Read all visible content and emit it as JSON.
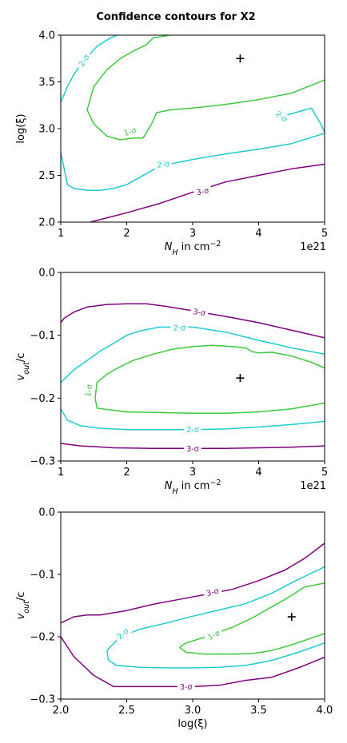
{
  "figure_title": "Confidence contours for X2",
  "colors": {
    "one_sigma": "#3ec93e",
    "two_sigma": "#1ecbd0",
    "three_sigma": "#800080"
  },
  "chart_data": [
    {
      "type": "line",
      "xlabel": "$N_H$ in cm$^{-2}$",
      "ylabel": "log(ξ)",
      "x_offset_label": "1e21",
      "xlim": [
        1,
        5
      ],
      "ylim": [
        2.0,
        4.0
      ],
      "x_ticks": [
        "1",
        "2",
        "3",
        "4",
        "5"
      ],
      "y_ticks": [
        "2.0",
        "2.5",
        "3.0",
        "3.5",
        "4.0"
      ],
      "x_tick_values": [
        1,
        2,
        3,
        4,
        5
      ],
      "y_tick_values": [
        2.0,
        2.5,
        3.0,
        3.5,
        4.0
      ],
      "best_fit": [
        3.72,
        3.75
      ],
      "series": [
        {
          "name": "3-σ",
          "level": "three_sigma",
          "x": [
            1.45,
            2.0,
            2.5,
            3.0,
            3.5,
            4.0,
            4.5,
            5.0
          ],
          "y": [
            2.0,
            2.1,
            2.2,
            2.32,
            2.43,
            2.5,
            2.57,
            2.62
          ]
        },
        {
          "name": "2-σ",
          "level": "two_sigma",
          "x": [
            1.0,
            1.1,
            1.2,
            1.4,
            1.6,
            1.8,
            2.0,
            2.5,
            3.0,
            3.5,
            4.0,
            4.5,
            5.0
          ],
          "y": [
            2.75,
            2.4,
            2.36,
            2.34,
            2.34,
            2.36,
            2.4,
            2.6,
            2.67,
            2.73,
            2.78,
            2.84,
            2.95
          ]
        },
        {
          "name": "2-σ",
          "level": "two_sigma",
          "x": [
            1.0,
            1.1,
            1.2,
            1.35,
            1.55,
            1.75,
            1.85
          ],
          "y": [
            3.28,
            3.45,
            3.58,
            3.73,
            3.88,
            3.97,
            4.0
          ]
        },
        {
          "name": "2-σ",
          "level": "two_sigma",
          "x": [
            4.3,
            4.55,
            4.8,
            4.95,
            5.0
          ],
          "y": [
            3.12,
            3.17,
            3.22,
            3.04,
            2.96
          ]
        },
        {
          "name": "1-σ",
          "level": "one_sigma",
          "x": [
            2.25,
            2.1,
            1.9,
            1.7,
            1.5,
            1.4,
            1.5,
            1.7,
            1.9,
            2.1,
            2.3,
            2.4,
            2.65
          ],
          "y": [
            2.9,
            2.9,
            2.88,
            2.92,
            3.05,
            3.2,
            3.45,
            3.63,
            3.75,
            3.83,
            3.9,
            3.97,
            4.0
          ]
        },
        {
          "name": "1-σ",
          "level": "one_sigma",
          "x": [
            2.25,
            2.4,
            2.45,
            2.65,
            3.0,
            3.5,
            4.0,
            4.5,
            5.0
          ],
          "y": [
            2.9,
            3.08,
            3.17,
            3.2,
            3.22,
            3.26,
            3.31,
            3.38,
            3.52
          ]
        }
      ],
      "contour_labels": [
        {
          "text": "2-σ",
          "level": "two_sigma",
          "x": 1.35,
          "y": 3.73,
          "angle": -58
        },
        {
          "text": "2-σ",
          "level": "two_sigma",
          "x": 4.35,
          "y": 3.13,
          "angle": 40
        },
        {
          "text": "2-σ",
          "level": "two_sigma",
          "x": 2.55,
          "y": 2.62,
          "angle": -8
        },
        {
          "text": "1-σ",
          "level": "one_sigma",
          "x": 2.05,
          "y": 2.97,
          "angle": -18
        },
        {
          "text": "3-σ",
          "level": "three_sigma",
          "x": 3.15,
          "y": 2.33,
          "angle": -10
        }
      ]
    },
    {
      "type": "line",
      "xlabel": "$N_H$ in cm$^{-2}$",
      "ylabel": "v_out/c",
      "x_offset_label": "1e21",
      "xlim": [
        1,
        5
      ],
      "ylim": [
        -0.3,
        0.0
      ],
      "x_ticks": [
        "1",
        "2",
        "3",
        "4",
        "5"
      ],
      "y_ticks": [
        "−0.3",
        "−0.2",
        "−0.1",
        "0.0"
      ],
      "x_tick_values": [
        1,
        2,
        3,
        4,
        5
      ],
      "y_tick_values": [
        -0.3,
        -0.2,
        -0.1,
        0.0
      ],
      "best_fit": [
        3.72,
        -0.168
      ],
      "series": [
        {
          "name": "3-σ",
          "level": "three_sigma",
          "x": [
            5.0,
            4.5,
            4.0,
            3.5,
            3.0,
            2.6,
            2.3,
            2.0,
            1.7,
            1.4,
            1.2,
            1.05,
            1.0
          ],
          "y": [
            -0.104,
            -0.092,
            -0.08,
            -0.07,
            -0.061,
            -0.054,
            -0.05,
            -0.05,
            -0.051,
            -0.055,
            -0.063,
            -0.073,
            -0.08
          ]
        },
        {
          "name": "3-σ",
          "level": "three_sigma",
          "x": [
            1.0,
            1.3,
            1.8,
            2.4,
            3.0,
            3.5,
            4.0,
            4.5,
            5.0
          ],
          "y": [
            -0.272,
            -0.276,
            -0.279,
            -0.28,
            -0.28,
            -0.28,
            -0.279,
            -0.278,
            -0.276
          ]
        },
        {
          "name": "2-σ",
          "level": "two_sigma",
          "x": [
            5.0,
            4.5,
            4.0,
            3.5,
            3.0,
            2.5,
            2.2,
            2.0,
            1.8,
            1.6,
            1.4,
            1.2,
            1.0
          ],
          "y": [
            -0.13,
            -0.12,
            -0.108,
            -0.095,
            -0.087,
            -0.087,
            -0.093,
            -0.1,
            -0.113,
            -0.125,
            -0.14,
            -0.155,
            -0.175
          ]
        },
        {
          "name": "2-σ",
          "level": "two_sigma",
          "x": [
            1.0,
            1.1,
            1.3,
            1.6,
            2.0,
            2.5,
            3.0,
            3.5,
            4.0,
            4.5,
            5.0
          ],
          "y": [
            -0.217,
            -0.235,
            -0.244,
            -0.248,
            -0.25,
            -0.25,
            -0.25,
            -0.249,
            -0.246,
            -0.242,
            -0.237
          ]
        },
        {
          "name": "1-σ",
          "level": "one_sigma",
          "x": [
            1.52,
            1.55,
            1.7,
            1.9,
            2.1,
            2.4,
            2.7,
            3.0,
            3.3,
            3.6,
            3.8,
            3.9,
            4.0,
            4.2,
            4.5,
            4.8,
            5.0
          ],
          "y": [
            -0.2,
            -0.175,
            -0.162,
            -0.15,
            -0.14,
            -0.13,
            -0.122,
            -0.118,
            -0.116,
            -0.118,
            -0.12,
            -0.126,
            -0.128,
            -0.127,
            -0.133,
            -0.143,
            -0.152
          ]
        },
        {
          "name": "1-σ",
          "level": "one_sigma",
          "x": [
            1.52,
            1.55,
            1.7,
            2.0,
            2.5,
            3.0,
            3.5,
            4.0,
            4.5,
            5.0
          ],
          "y": [
            -0.2,
            -0.216,
            -0.218,
            -0.222,
            -0.223,
            -0.224,
            -0.224,
            -0.222,
            -0.217,
            -0.208
          ]
        }
      ],
      "contour_labels": [
        {
          "text": "3-σ",
          "level": "three_sigma",
          "x": 3.1,
          "y": -0.063,
          "angle": 8
        },
        {
          "text": "2-σ",
          "level": "two_sigma",
          "x": 2.8,
          "y": -0.088,
          "angle": 0
        },
        {
          "text": "1-σ",
          "level": "one_sigma",
          "x": 1.42,
          "y": -0.188,
          "angle": -82
        },
        {
          "text": "2-σ",
          "level": "two_sigma",
          "x": 3.0,
          "y": -0.25,
          "angle": 0
        },
        {
          "text": "3-σ",
          "level": "three_sigma",
          "x": 3.0,
          "y": -0.28,
          "angle": 0
        }
      ]
    },
    {
      "type": "line",
      "xlabel": "log(ξ)",
      "ylabel": "v_out/c",
      "xlim": [
        2.0,
        4.0
      ],
      "ylim": [
        -0.3,
        0.0
      ],
      "x_ticks": [
        "2.0",
        "2.5",
        "3.0",
        "3.5",
        "4.0"
      ],
      "y_ticks": [
        "−0.3",
        "−0.2",
        "−0.1",
        "0.0"
      ],
      "x_tick_values": [
        2.0,
        2.5,
        3.0,
        3.5,
        4.0
      ],
      "y_tick_values": [
        -0.3,
        -0.2,
        -0.1,
        0.0
      ],
      "best_fit": [
        3.75,
        -0.168
      ],
      "series": [
        {
          "name": "3-σ",
          "level": "three_sigma",
          "x": [
            2.0,
            2.1,
            2.2,
            2.3,
            2.5,
            2.7,
            2.9,
            3.1,
            3.3,
            3.5,
            3.7,
            3.85,
            4.0
          ],
          "y": [
            -0.178,
            -0.168,
            -0.165,
            -0.165,
            -0.158,
            -0.148,
            -0.14,
            -0.132,
            -0.124,
            -0.11,
            -0.093,
            -0.074,
            -0.05
          ]
        },
        {
          "name": "3-σ",
          "level": "three_sigma",
          "x": [
            2.0,
            2.1,
            2.25,
            2.4,
            2.7,
            3.0,
            3.2,
            3.4,
            3.6,
            3.8,
            4.0
          ],
          "y": [
            -0.2,
            -0.232,
            -0.262,
            -0.28,
            -0.28,
            -0.28,
            -0.278,
            -0.27,
            -0.265,
            -0.25,
            -0.233
          ]
        },
        {
          "name": "2-σ",
          "level": "two_sigma",
          "x": [
            2.35,
            2.45,
            2.6,
            2.8,
            3.0,
            3.2,
            3.4,
            3.6,
            3.8,
            4.0
          ],
          "y": [
            -0.222,
            -0.2,
            -0.188,
            -0.178,
            -0.167,
            -0.157,
            -0.147,
            -0.13,
            -0.108,
            -0.088
          ]
        },
        {
          "name": "2-σ",
          "level": "two_sigma",
          "x": [
            2.35,
            2.36,
            2.42,
            2.6,
            2.8,
            3.0,
            3.2,
            3.4,
            3.6,
            3.8,
            4.0
          ],
          "y": [
            -0.222,
            -0.237,
            -0.246,
            -0.249,
            -0.25,
            -0.25,
            -0.249,
            -0.246,
            -0.238,
            -0.225,
            -0.21
          ]
        },
        {
          "name": "1-σ",
          "level": "one_sigma",
          "x": [
            2.9,
            2.95,
            3.1,
            3.3,
            3.45,
            3.55,
            3.7,
            3.85,
            4.0
          ],
          "y": [
            -0.217,
            -0.21,
            -0.2,
            -0.185,
            -0.17,
            -0.158,
            -0.14,
            -0.12,
            -0.114
          ]
        },
        {
          "name": "1-σ",
          "level": "one_sigma",
          "x": [
            2.9,
            2.95,
            3.1,
            3.3,
            3.45,
            3.6,
            3.75,
            3.9,
            4.0
          ],
          "y": [
            -0.217,
            -0.225,
            -0.228,
            -0.228,
            -0.227,
            -0.222,
            -0.213,
            -0.202,
            -0.195
          ]
        }
      ],
      "contour_labels": [
        {
          "text": "3-σ",
          "level": "three_sigma",
          "x": 3.15,
          "y": -0.128,
          "angle": -15
        },
        {
          "text": "2-σ",
          "level": "two_sigma",
          "x": 2.47,
          "y": -0.195,
          "angle": -40
        },
        {
          "text": "1-σ",
          "level": "one_sigma",
          "x": 3.16,
          "y": -0.197,
          "angle": -28
        },
        {
          "text": "3-σ",
          "level": "three_sigma",
          "x": 2.95,
          "y": -0.28,
          "angle": 0
        }
      ]
    }
  ]
}
